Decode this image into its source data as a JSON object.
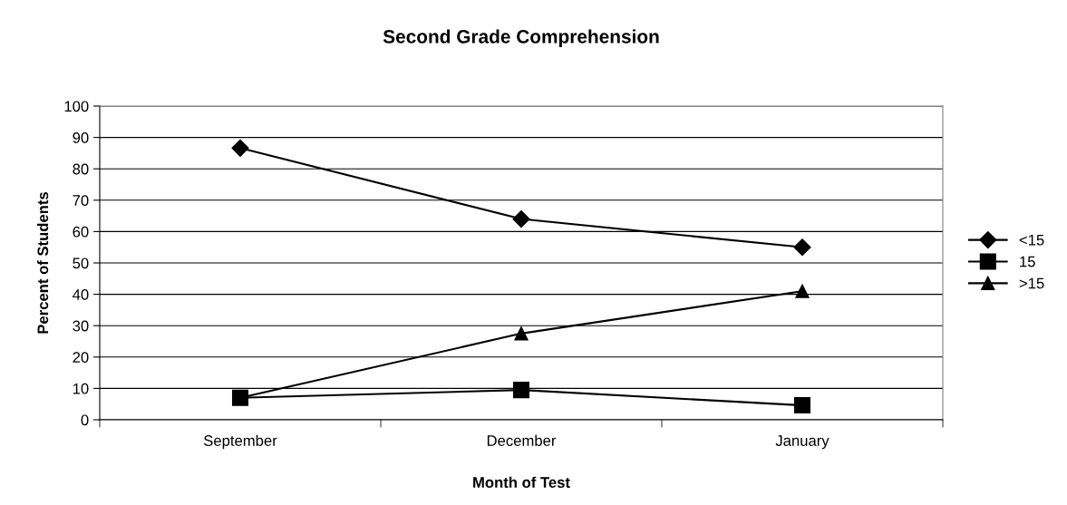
{
  "chart_data": {
    "type": "line",
    "title": "Second Grade Comprehension",
    "xlabel": "Month of Test",
    "ylabel": "Percent of Students",
    "categories": [
      "September",
      "December",
      "January"
    ],
    "series": [
      {
        "name": "<15",
        "color": "#000000",
        "marker": "diamond",
        "values": [
          86.6,
          64,
          55
        ]
      },
      {
        "name": "15",
        "color": "#000000",
        "marker": "square",
        "values": [
          7,
          9.5,
          4.6
        ]
      },
      {
        "name": ">15",
        "color": "#000000",
        "marker": "triangle",
        "values": [
          7,
          27.5,
          41
        ]
      }
    ],
    "ylim": [
      0,
      100
    ],
    "yticks": [
      0,
      10,
      20,
      30,
      40,
      50,
      60,
      70,
      80,
      90,
      100
    ],
    "grid": "y",
    "legend": "right",
    "line_style": "solid"
  }
}
